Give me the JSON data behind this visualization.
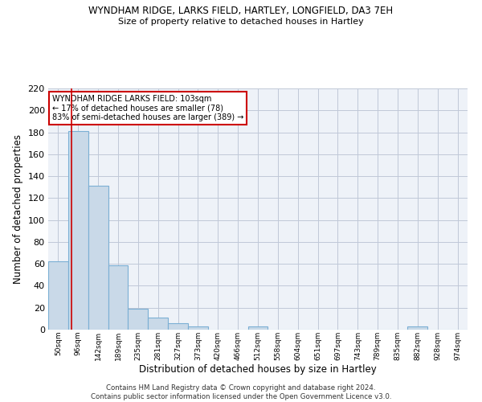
{
  "title": "WYNDHAM RIDGE, LARKS FIELD, HARTLEY, LONGFIELD, DA3 7EH",
  "subtitle": "Size of property relative to detached houses in Hartley",
  "xlabel": "Distribution of detached houses by size in Hartley",
  "ylabel": "Number of detached properties",
  "footnote": "Contains HM Land Registry data © Crown copyright and database right 2024.\nContains public sector information licensed under the Open Government Licence v3.0.",
  "bin_labels": [
    "50sqm",
    "96sqm",
    "142sqm",
    "189sqm",
    "235sqm",
    "281sqm",
    "327sqm",
    "373sqm",
    "420sqm",
    "466sqm",
    "512sqm",
    "558sqm",
    "604sqm",
    "651sqm",
    "697sqm",
    "743sqm",
    "789sqm",
    "835sqm",
    "882sqm",
    "928sqm",
    "974sqm"
  ],
  "bar_values": [
    62,
    181,
    131,
    59,
    19,
    11,
    6,
    3,
    0,
    0,
    3,
    0,
    0,
    0,
    0,
    0,
    0,
    0,
    3,
    0,
    0
  ],
  "bar_color": "#c9d9e8",
  "bar_edge_color": "#7bafd4",
  "grid_color": "#c0c8d8",
  "bg_color": "#eef2f8",
  "property_line_color": "#cc0000",
  "annotation_text": "WYNDHAM RIDGE LARKS FIELD: 103sqm\n← 17% of detached houses are smaller (78)\n83% of semi-detached houses are larger (389) →",
  "annotation_box_color": "#ffffff",
  "annotation_box_edge_color": "#cc0000",
  "ylim": [
    0,
    220
  ],
  "yticks": [
    0,
    20,
    40,
    60,
    80,
    100,
    120,
    140,
    160,
    180,
    200,
    220
  ]
}
